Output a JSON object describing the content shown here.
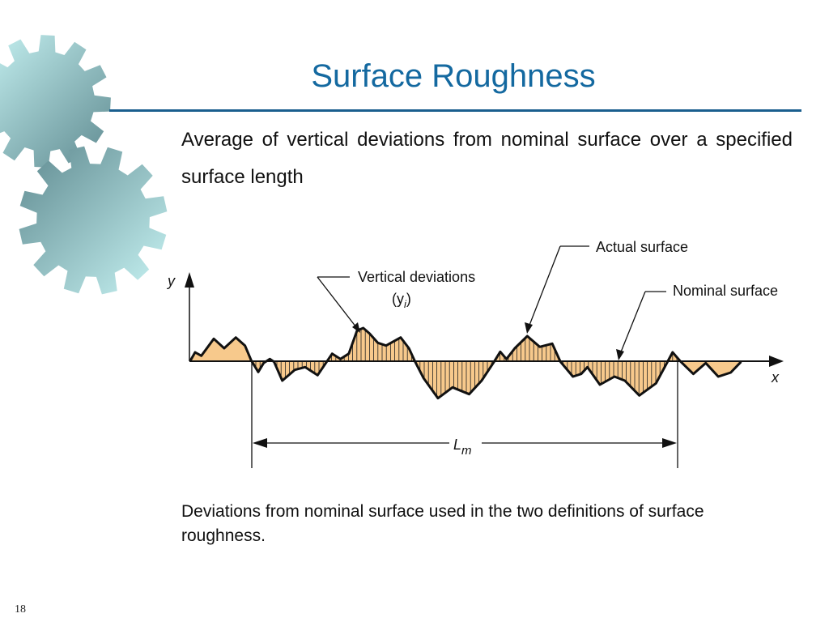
{
  "slide": {
    "title": "Surface Roughness",
    "body": "Average of vertical deviations from nominal surface over a specified surface length",
    "caption": "Deviations from nominal surface used in the two definitions of surface roughness.",
    "page_number": "18"
  },
  "diagram": {
    "labels": {
      "actual_surface": "Actual surface",
      "vertical_deviations": "Vertical deviations",
      "yi_open": "(y",
      "yi_sub": "i",
      "yi_close": ")",
      "nominal_surface": "Nominal surface",
      "y_axis": "y",
      "x_axis": "x",
      "lm_main": "L",
      "lm_sub": "m"
    },
    "colors": {
      "fill": "#f7c98c",
      "title": "#1469a0",
      "rule": "#1a5e8e"
    }
  },
  "decoration": {
    "icon": "gears-icon"
  }
}
